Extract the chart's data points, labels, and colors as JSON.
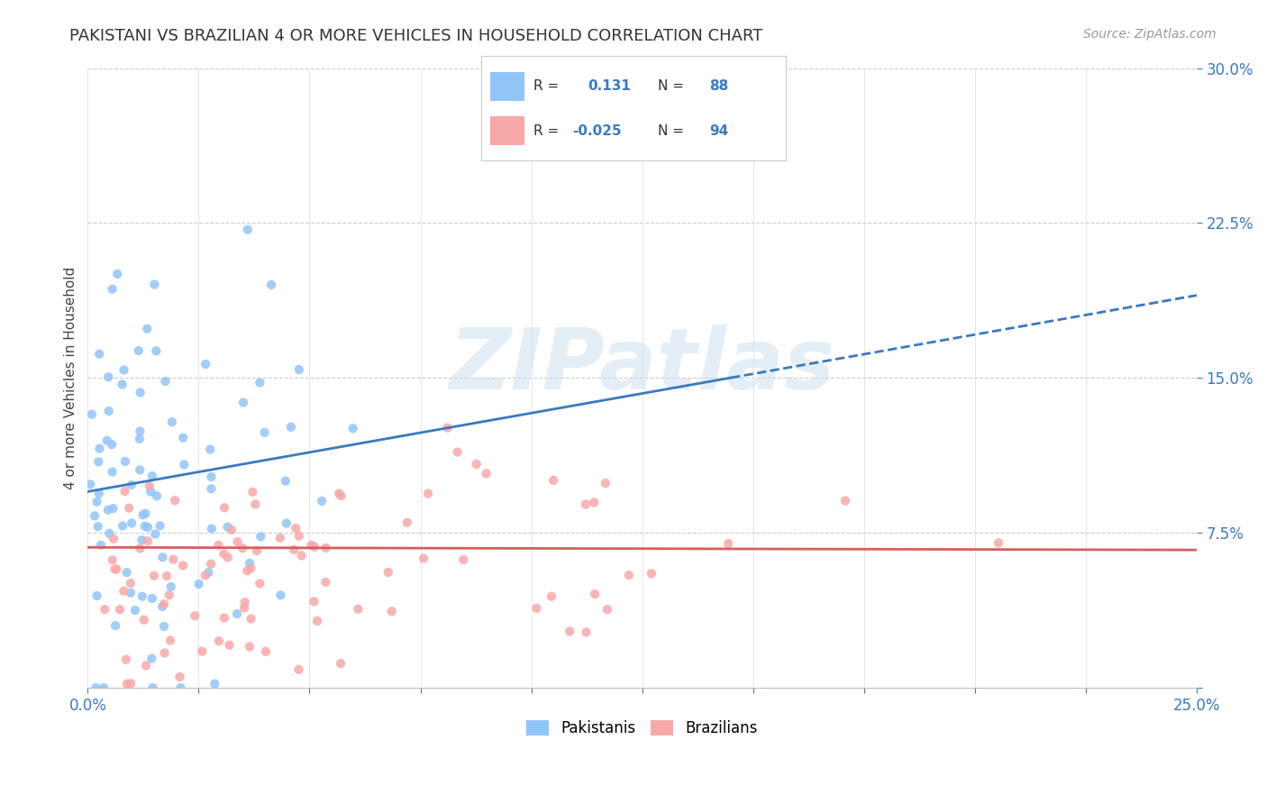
{
  "title": "PAKISTANI VS BRAZILIAN 4 OR MORE VEHICLES IN HOUSEHOLD CORRELATION CHART",
  "source": "Source: ZipAtlas.com",
  "ylabel": "4 or more Vehicles in Household",
  "xlim": [
    0.0,
    0.25
  ],
  "ylim": [
    0.0,
    0.3
  ],
  "pakistani_color": "#92c5f7",
  "brazilian_color": "#f9a8a8",
  "pakistani_line_color": "#3a7abf",
  "brazilian_line_color": "#d45f5f",
  "R_pakistani": 0.131,
  "N_pakistani": 88,
  "R_brazilian": -0.025,
  "N_brazilian": 94,
  "background_color": "#ffffff",
  "legend_text_color": "#333333",
  "legend_value_color": "#3a7abf",
  "title_color": "#333333",
  "source_color": "#999999",
  "ytick_color": "#3a7abf",
  "xtick_color": "#3a7abf",
  "grid_h_color": "#cccccc",
  "grid_v_color": "#dddddd",
  "watermark_color": "#c8dff0",
  "watermark_alpha": 0.5,
  "pak_line_solid_end": 0.145,
  "pak_line_intercept": 0.095,
  "pak_line_slope": 0.38,
  "bra_line_intercept": 0.068,
  "bra_line_slope": -0.005
}
